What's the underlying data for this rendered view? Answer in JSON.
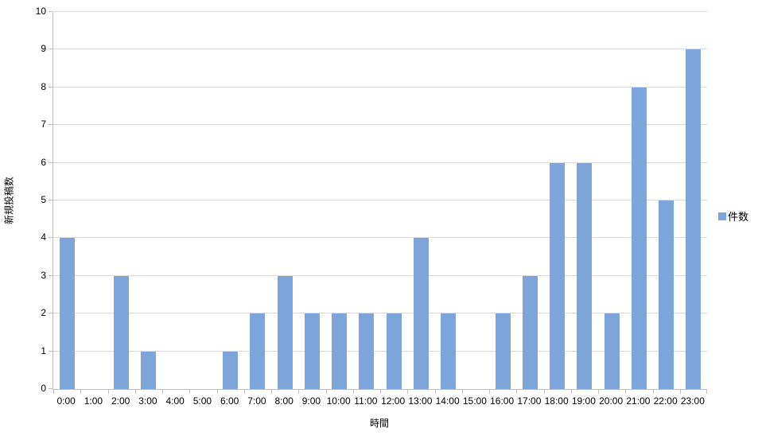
{
  "chart_data": {
    "type": "bar",
    "categories": [
      "0:00",
      "1:00",
      "2:00",
      "3:00",
      "4:00",
      "5:00",
      "6:00",
      "7:00",
      "8:00",
      "9:00",
      "10:00",
      "11:00",
      "12:00",
      "13:00",
      "14:00",
      "15:00",
      "16:00",
      "17:00",
      "18:00",
      "19:00",
      "20:00",
      "21:00",
      "22:00",
      "23:00"
    ],
    "series": [
      {
        "name": "件数",
        "values": [
          4,
          0,
          3,
          1,
          0,
          0,
          1,
          2,
          3,
          2,
          2,
          2,
          2,
          4,
          2,
          0,
          2,
          3,
          6,
          6,
          2,
          8,
          5,
          9
        ]
      }
    ],
    "title": "",
    "xlabel": "時間",
    "ylabel": "新規投稿数",
    "ylim": [
      0,
      10
    ],
    "ytick_step": 1,
    "grid": true,
    "legend_position": "right",
    "colors": {
      "bar": "#7ca5db",
      "gridline": "#d9d9d9",
      "axis": "#bfbfbf",
      "text": "#000000",
      "background": "#ffffff"
    }
  }
}
